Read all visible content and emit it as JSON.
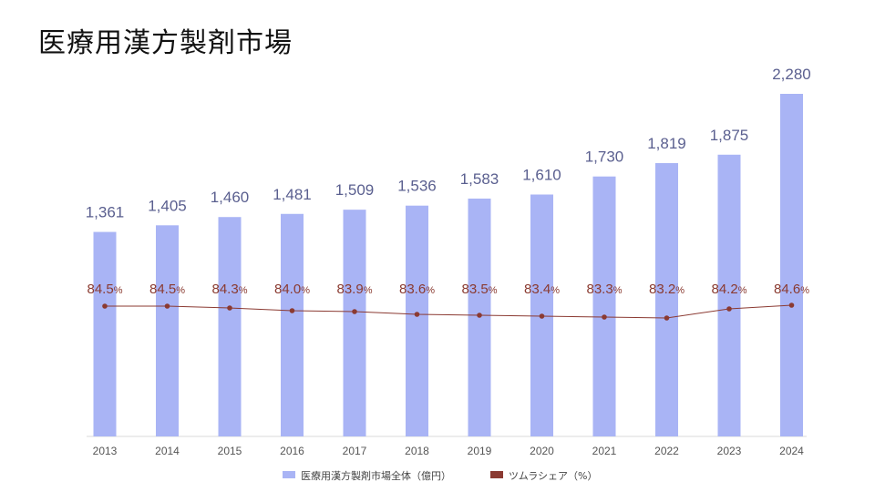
{
  "title": "医療用漢方製剤市場",
  "chart_data": {
    "type": "bar",
    "categories": [
      "2013",
      "2014",
      "2015",
      "2016",
      "2017",
      "2018",
      "2019",
      "2020",
      "2021",
      "2022",
      "2023",
      "2024"
    ],
    "series": [
      {
        "name": "医療用漢方製剤市場全体（億円）",
        "type": "bar",
        "color": "#a9b4f5",
        "values": [
          1361,
          1405,
          1460,
          1481,
          1509,
          1536,
          1583,
          1610,
          1730,
          1819,
          1875,
          2280
        ],
        "labels": [
          "1,361",
          "1,405",
          "1,460",
          "1,481",
          "1,509",
          "1,536",
          "1,583",
          "1,610",
          "1,730",
          "1,819",
          "1,875",
          "2,280"
        ]
      },
      {
        "name": "ツムラシェア（%）",
        "type": "line",
        "color": "#8b3a32",
        "values": [
          84.5,
          84.5,
          84.3,
          84.0,
          83.9,
          83.6,
          83.5,
          83.4,
          83.3,
          83.2,
          84.2,
          84.6
        ],
        "labels": [
          "84.5",
          "84.5",
          "84.3",
          "84.0",
          "83.9",
          "83.6",
          "83.5",
          "83.4",
          "83.3",
          "83.2",
          "84.2",
          "84.6"
        ],
        "unit": "%"
      }
    ],
    "ylim": [
      0,
      2350
    ],
    "grid": false,
    "legend": "bottom"
  }
}
